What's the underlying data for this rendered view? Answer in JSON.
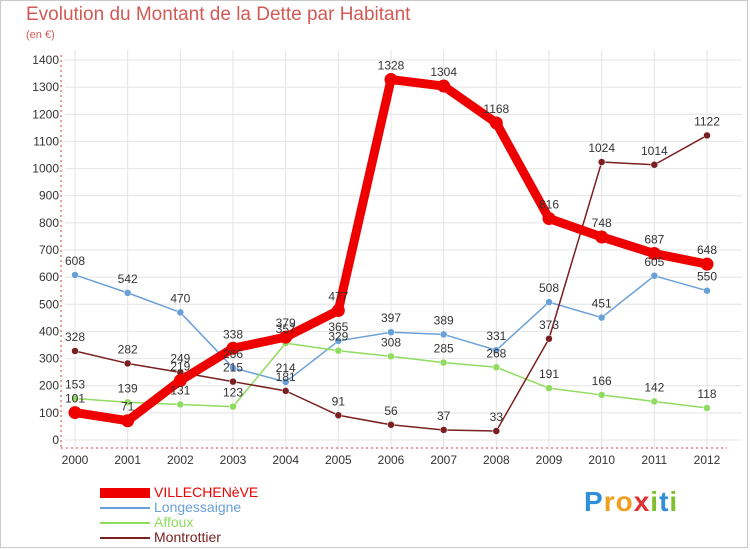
{
  "header": {
    "title": "Evolution du Montant de la Dette par Habitant",
    "subtitle": "(en €)"
  },
  "logo": {
    "text": "Proxiti",
    "letters": [
      "P",
      "r",
      "o",
      "x",
      "i",
      "t",
      "i"
    ],
    "colors": [
      "#2f8fd8",
      "#f0a020",
      "#f0a020",
      "#e03030",
      "#80c030",
      "#2f8fd8",
      "#80c030"
    ]
  },
  "chart_data": {
    "type": "line",
    "x": [
      "2000",
      "2001",
      "2002",
      "2003",
      "2004",
      "2005",
      "2006",
      "2007",
      "2008",
      "2009",
      "2010",
      "2011",
      "2012"
    ],
    "ylim": [
      0,
      1400
    ],
    "yticks": [
      "0",
      "100",
      "200",
      "300",
      "400",
      "500",
      "600",
      "700",
      "800",
      "900",
      "1000",
      "1100",
      "1200",
      "1300",
      "1400"
    ],
    "grid": true,
    "legend_position": "bottom-left",
    "series": [
      {
        "name": "VILLECHENèVE",
        "color": "#ee0000",
        "values": [
          101,
          71,
          219,
          338,
          379,
          477,
          1328,
          1304,
          1168,
          816,
          748,
          687,
          648
        ],
        "labels": [
          "101",
          "71",
          "219",
          "338",
          "379",
          "477",
          "1328",
          "1304",
          "1168",
          "816",
          "748",
          "687",
          "648"
        ]
      },
      {
        "name": "Longessaigne",
        "color": "#6aa0d8",
        "values": [
          608,
          542,
          470,
          266,
          214,
          365,
          397,
          389,
          331,
          508,
          451,
          605,
          550
        ],
        "labels": [
          "608",
          "542",
          "470",
          "266",
          "214",
          "365",
          "397",
          "389",
          "331",
          "508",
          "451",
          "605",
          "550"
        ]
      },
      {
        "name": "Affoux",
        "color": "#8fdc60",
        "values": [
          153,
          139,
          131,
          123,
          357,
          329,
          308,
          285,
          268,
          191,
          166,
          142,
          118
        ],
        "labels": [
          "153",
          "139",
          "131",
          "123",
          "357",
          "329",
          "308",
          "285",
          "268",
          "191",
          "166",
          "142",
          "118"
        ]
      },
      {
        "name": "Montrottier",
        "color": "#7a2020",
        "values": [
          328,
          282,
          249,
          215,
          181,
          91,
          56,
          37,
          33,
          373,
          1024,
          1014,
          1122
        ],
        "labels": [
          "328",
          "282",
          "249",
          "215",
          "181",
          "91",
          "56",
          "37",
          "33",
          "373",
          "1024",
          "1014",
          "1122"
        ]
      }
    ]
  }
}
